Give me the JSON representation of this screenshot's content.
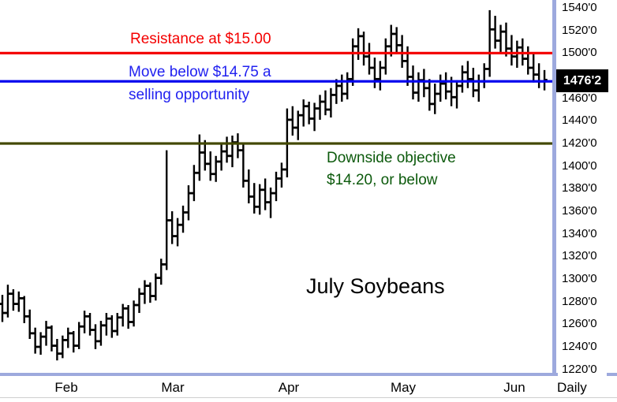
{
  "chart": {
    "title": "July Soybeans",
    "timeframe": "Daily",
    "last_price": "1476'2"
  },
  "annotations": {
    "resistance": {
      "line1": "Resistance at $15.00",
      "price": 1500
    },
    "selling": {
      "line1": "Move below $14.75 a",
      "line2": "selling opportunity",
      "price": 1475
    },
    "objective": {
      "line1": "Downside objective",
      "line2": "$14.20, or below",
      "price": 1420
    }
  },
  "colors": {
    "resistance_line": "#f40000",
    "selling_line": "#0000ee",
    "selling_text": "#2121f0",
    "objective_line": "#424800",
    "objective_text": "#0c5a0c",
    "axis_separator": "#9da9dd",
    "bars": "#000000",
    "last_price_bg": "#000000",
    "last_price_text": "#ffffff"
  },
  "y_axis": {
    "tick_labels": [
      "1540'0",
      "1520'0",
      "1500'0",
      "1460'0",
      "1440'0",
      "1420'0",
      "1400'0",
      "1380'0",
      "1360'0",
      "1340'0",
      "1320'0",
      "1300'0",
      "1280'0",
      "1260'0",
      "1240'0",
      "1220'0"
    ],
    "tick_values": [
      1540,
      1520,
      1500,
      1460,
      1440,
      1420,
      1400,
      1380,
      1360,
      1340,
      1320,
      1300,
      1280,
      1260,
      1240,
      1220
    ]
  },
  "x_axis": {
    "month_labels": [
      "Feb",
      "Mar",
      "Apr",
      "May",
      "Jun"
    ],
    "month_x": [
      84,
      219,
      366,
      511,
      652
    ]
  },
  "chart_data": {
    "type": "ohlc-bar",
    "instrument": "July Soybeans",
    "period": "Daily",
    "ylim": [
      1217,
      1547
    ],
    "price_unit": "cents per bushel (eighths)",
    "last_close": 1476.25,
    "levels": [
      {
        "name": "resistance-line",
        "price": 1500,
        "color": "#f40000",
        "label": "Resistance at $15.00"
      },
      {
        "name": "sell-signal-line",
        "price": 1475,
        "color": "#0000ee",
        "label": "Move below $14.75 a selling opportunity"
      },
      {
        "name": "downside-objective-line",
        "price": 1420,
        "color": "#424800",
        "label": "Downside objective $14.20, or below"
      }
    ],
    "bars": [
      [
        1278,
        1286,
        1262,
        1270
      ],
      [
        1270,
        1295,
        1266,
        1287
      ],
      [
        1287,
        1291,
        1272,
        1278
      ],
      [
        1278,
        1289,
        1271,
        1283
      ],
      [
        1283,
        1285,
        1261,
        1267
      ],
      [
        1267,
        1273,
        1247,
        1252
      ],
      [
        1252,
        1257,
        1234,
        1240
      ],
      [
        1240,
        1253,
        1233,
        1249
      ],
      [
        1249,
        1263,
        1241,
        1257
      ],
      [
        1257,
        1259,
        1236,
        1241
      ],
      [
        1241,
        1247,
        1228,
        1234
      ],
      [
        1234,
        1250,
        1230,
        1246
      ],
      [
        1246,
        1257,
        1239,
        1252
      ],
      [
        1252,
        1254,
        1235,
        1241
      ],
      [
        1241,
        1262,
        1238,
        1258
      ],
      [
        1258,
        1272,
        1252,
        1267
      ],
      [
        1267,
        1270,
        1250,
        1255
      ],
      [
        1255,
        1260,
        1238,
        1245
      ],
      [
        1245,
        1263,
        1241,
        1259
      ],
      [
        1259,
        1270,
        1250,
        1265
      ],
      [
        1265,
        1268,
        1248,
        1254
      ],
      [
        1254,
        1270,
        1250,
        1266
      ],
      [
        1266,
        1278,
        1258,
        1274
      ],
      [
        1274,
        1277,
        1256,
        1262
      ],
      [
        1262,
        1281,
        1258,
        1277
      ],
      [
        1277,
        1292,
        1270,
        1287
      ],
      [
        1287,
        1299,
        1278,
        1294
      ],
      [
        1294,
        1297,
        1279,
        1285
      ],
      [
        1285,
        1305,
        1281,
        1301
      ],
      [
        1301,
        1318,
        1295,
        1313
      ],
      [
        1313,
        1414,
        1308,
        1352
      ],
      [
        1352,
        1360,
        1331,
        1338
      ],
      [
        1338,
        1354,
        1329,
        1348
      ],
      [
        1348,
        1365,
        1341,
        1359
      ],
      [
        1359,
        1383,
        1352,
        1376
      ],
      [
        1376,
        1401,
        1369,
        1394
      ],
      [
        1394,
        1428,
        1387,
        1412
      ],
      [
        1412,
        1423,
        1396,
        1402
      ],
      [
        1402,
        1413,
        1387,
        1393
      ],
      [
        1393,
        1409,
        1386,
        1404
      ],
      [
        1404,
        1419,
        1396,
        1413
      ],
      [
        1413,
        1426,
        1403,
        1409
      ],
      [
        1409,
        1427,
        1399,
        1421
      ],
      [
        1421,
        1429,
        1407,
        1414
      ],
      [
        1414,
        1419,
        1381,
        1387
      ],
      [
        1387,
        1397,
        1367,
        1373
      ],
      [
        1373,
        1385,
        1358,
        1364
      ],
      [
        1364,
        1384,
        1357,
        1379
      ],
      [
        1379,
        1389,
        1361,
        1368
      ],
      [
        1368,
        1381,
        1354,
        1376
      ],
      [
        1376,
        1395,
        1369,
        1389
      ],
      [
        1389,
        1403,
        1381,
        1397
      ],
      [
        1397,
        1451,
        1390,
        1441
      ],
      [
        1441,
        1453,
        1427,
        1434
      ],
      [
        1434,
        1449,
        1423,
        1445
      ],
      [
        1445,
        1459,
        1435,
        1453
      ],
      [
        1453,
        1457,
        1437,
        1442
      ],
      [
        1442,
        1456,
        1431,
        1451
      ],
      [
        1451,
        1463,
        1441,
        1457
      ],
      [
        1457,
        1467,
        1445,
        1450
      ],
      [
        1450,
        1469,
        1443,
        1463
      ],
      [
        1463,
        1477,
        1455,
        1471
      ],
      [
        1471,
        1481,
        1457,
        1464
      ],
      [
        1464,
        1483,
        1459,
        1477
      ],
      [
        1477,
        1513,
        1471,
        1506
      ],
      [
        1506,
        1522,
        1494,
        1515
      ],
      [
        1515,
        1519,
        1489,
        1497
      ],
      [
        1497,
        1509,
        1481,
        1487
      ],
      [
        1487,
        1496,
        1469,
        1477
      ],
      [
        1477,
        1493,
        1467,
        1487
      ],
      [
        1487,
        1513,
        1481,
        1506
      ],
      [
        1506,
        1525,
        1497,
        1517
      ],
      [
        1517,
        1523,
        1499,
        1507
      ],
      [
        1507,
        1516,
        1487,
        1493
      ],
      [
        1493,
        1506,
        1471,
        1479
      ],
      [
        1479,
        1489,
        1459,
        1465
      ],
      [
        1465,
        1483,
        1457,
        1476
      ],
      [
        1476,
        1486,
        1461,
        1469
      ],
      [
        1469,
        1477,
        1449,
        1455
      ],
      [
        1455,
        1473,
        1446,
        1464
      ],
      [
        1464,
        1481,
        1457,
        1473
      ],
      [
        1473,
        1483,
        1459,
        1466
      ],
      [
        1466,
        1479,
        1453,
        1461
      ],
      [
        1461,
        1476,
        1451,
        1471
      ],
      [
        1471,
        1489,
        1465,
        1483
      ],
      [
        1483,
        1493,
        1469,
        1477
      ],
      [
        1477,
        1487,
        1461,
        1467
      ],
      [
        1467,
        1481,
        1457,
        1475
      ],
      [
        1475,
        1491,
        1469,
        1486
      ],
      [
        1486,
        1538,
        1479,
        1521
      ],
      [
        1521,
        1533,
        1504,
        1511
      ],
      [
        1511,
        1525,
        1501,
        1519
      ],
      [
        1519,
        1527,
        1497,
        1504
      ],
      [
        1504,
        1516,
        1489,
        1497
      ],
      [
        1497,
        1511,
        1487,
        1505
      ],
      [
        1505,
        1513,
        1489,
        1495
      ],
      [
        1495,
        1506,
        1481,
        1487
      ],
      [
        1487,
        1499,
        1474,
        1481
      ],
      [
        1481,
        1491,
        1469,
        1475
      ],
      [
        1475,
        1485,
        1467,
        1476.25
      ]
    ]
  }
}
